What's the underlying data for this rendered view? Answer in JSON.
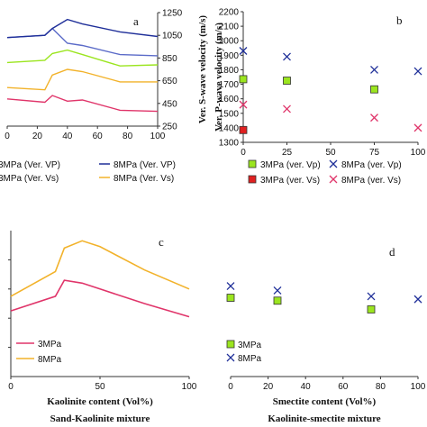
{
  "chart_data": [
    {
      "id": "a",
      "type": "line",
      "panel_label": "a",
      "y2label": "Ver. S-wave velocity (m/s)",
      "xlim": [
        0,
        100
      ],
      "xticks": [
        "0",
        "20",
        "40",
        "60",
        "80",
        "100"
      ],
      "ylim": [
        250,
        1250
      ],
      "yticks": [
        "250",
        "450",
        "650",
        "850",
        "1050",
        "1250"
      ],
      "series": [
        {
          "name": "3MPa (Ver. VP)",
          "color": "#5b6bc8",
          "x": [
            0,
            25,
            30,
            40,
            50,
            75,
            100
          ],
          "y": [
            1030,
            1050,
            1110,
            980,
            960,
            880,
            870
          ]
        },
        {
          "name": "8MPa (Ver. VP)",
          "color": "#1f2f99",
          "x": [
            0,
            25,
            30,
            40,
            50,
            75,
            100
          ],
          "y": [
            1030,
            1050,
            1110,
            1190,
            1150,
            1080,
            1040
          ]
        },
        {
          "name": "",
          "color": "#9be51f",
          "x": [
            0,
            25,
            30,
            40,
            50,
            75,
            100
          ],
          "y": [
            810,
            830,
            890,
            920,
            880,
            780,
            790
          ]
        },
        {
          "name": "3MPa (Ver. Vs)",
          "color": "#e0356a",
          "x": [
            0,
            25,
            30,
            40,
            50,
            75,
            100
          ],
          "y": [
            490,
            460,
            520,
            470,
            480,
            390,
            380
          ]
        },
        {
          "name": "8MPa (Ver. Vs)",
          "color": "#f2b22a",
          "x": [
            0,
            25,
            30,
            40,
            50,
            75,
            100
          ],
          "y": [
            590,
            570,
            700,
            750,
            730,
            640,
            640
          ]
        }
      ]
    },
    {
      "id": "b",
      "type": "scatter",
      "panel_label": "b",
      "ylabel": "Ver. P-wave velocity (m/s)",
      "xlim": [
        0,
        100
      ],
      "xticks": [
        "0",
        "25",
        "50",
        "75",
        "100"
      ],
      "ylim": [
        1300,
        2200
      ],
      "yticks": [
        "1300",
        "1400",
        "1500",
        "1600",
        "1700",
        "1800",
        "1900",
        "2000",
        "2100",
        "2200"
      ],
      "series": [
        {
          "name": "3MPa  (ver. Vp)",
          "marker": "square",
          "color": "#9be51f",
          "x": [
            0,
            25,
            75
          ],
          "y": [
            1735,
            1725,
            1665
          ]
        },
        {
          "name": "8MPa  (ver. Vp)",
          "marker": "x",
          "color": "#1f2f99",
          "x": [
            0,
            25,
            75,
            100
          ],
          "y": [
            1930,
            1890,
            1800,
            1790
          ]
        },
        {
          "name": "3MPa  (ver. Vs)",
          "marker": "square",
          "color": "#e02020",
          "x": [
            0
          ],
          "y": [
            1385
          ]
        },
        {
          "name": "8MPa  (ver. Vs)",
          "marker": "x",
          "color": "#e0356a",
          "x": [
            0,
            25,
            75,
            100
          ],
          "y": [
            1560,
            1530,
            1470,
            1400
          ]
        }
      ]
    },
    {
      "id": "c",
      "type": "line",
      "panel_label": "c",
      "xlabel": "Kaolinite content (Vol%)",
      "caption": "Sand-Kaolinite mixture",
      "xlim": [
        0,
        100
      ],
      "xticks": [
        "0",
        "50",
        "100"
      ],
      "ylim": [
        0,
        1
      ],
      "series": [
        {
          "name": "3MPa",
          "color": "#e0356a",
          "x": [
            0,
            25,
            30,
            40,
            50,
            75,
            100
          ],
          "y": [
            0.45,
            0.55,
            0.66,
            0.64,
            0.6,
            0.5,
            0.41
          ]
        },
        {
          "name": "8MPa",
          "color": "#f2b22a",
          "x": [
            0,
            25,
            30,
            40,
            50,
            75,
            100
          ],
          "y": [
            0.55,
            0.72,
            0.88,
            0.93,
            0.89,
            0.73,
            0.6
          ]
        }
      ]
    },
    {
      "id": "d",
      "type": "scatter",
      "panel_label": "d",
      "xlabel": "Smectite content (Vol%)",
      "caption": "Kaolinite-smectite mixture",
      "xlim": [
        0,
        100
      ],
      "xticks": [
        "0",
        "20",
        "40",
        "60",
        "80",
        "100"
      ],
      "ylim": [
        0,
        1
      ],
      "series": [
        {
          "name": "3MPa",
          "marker": "square",
          "color": "#9be51f",
          "x": [
            0,
            25,
            75
          ],
          "y": [
            0.54,
            0.52,
            0.46
          ]
        },
        {
          "name": "8MPa",
          "marker": "x",
          "color": "#1f2f99",
          "x": [
            0,
            25,
            75,
            100
          ],
          "y": [
            0.62,
            0.59,
            0.55,
            0.53
          ]
        }
      ]
    }
  ]
}
